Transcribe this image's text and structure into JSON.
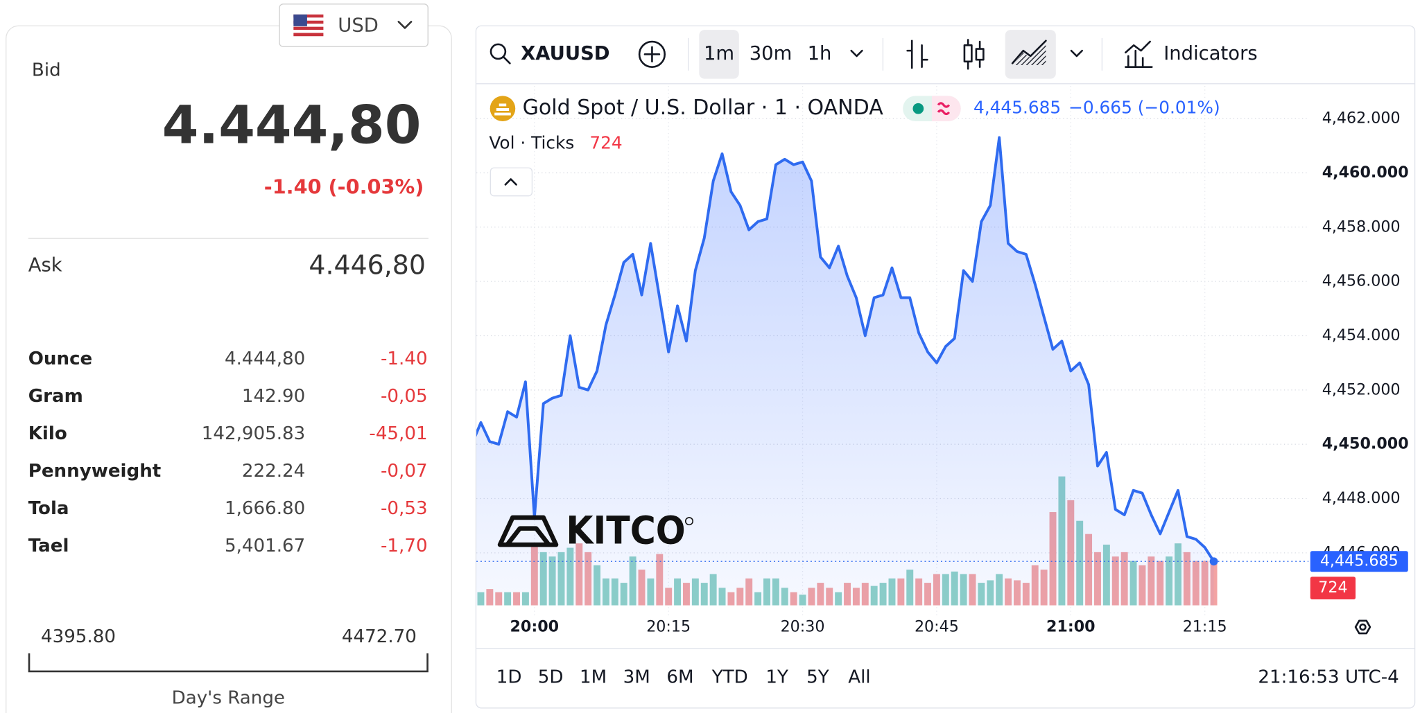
{
  "currency": {
    "code": "USD"
  },
  "quote": {
    "bid_label": "Bid",
    "bid": "4.444,80",
    "change": "-1.40 (-0.03%)",
    "ask_label": "Ask",
    "ask": "4.446,80"
  },
  "units": {
    "rows": [
      {
        "unit": "Ounce",
        "price": "4.444,80",
        "change": "-1.40"
      },
      {
        "unit": "Gram",
        "price": "142.90",
        "change": "-0,05"
      },
      {
        "unit": "Kilo",
        "price": "142,905.83",
        "change": "-45,01"
      },
      {
        "unit": "Pennyweight",
        "price": "222.24",
        "change": "-0,07"
      },
      {
        "unit": "Tola",
        "price": "1,666.80",
        "change": "-0,53"
      },
      {
        "unit": "Tael",
        "price": "5,401.67",
        "change": "-1,70"
      }
    ]
  },
  "day_range": {
    "low": "4395.80",
    "high": "4472.70",
    "label": "Day's Range"
  },
  "toolbar": {
    "symbol": "XAUUSD",
    "intervals": [
      "1m",
      "30m",
      "1h"
    ],
    "indicators": "Indicators"
  },
  "chart_data": {
    "type": "line",
    "title": "Gold Spot / U.S. Dollar · 1 · OANDA",
    "last_label": "4,445.685",
    "change_label": "−0.665 (−0.01%)",
    "watermark": "KITCO",
    "x": [
      "19:53",
      "19:54",
      "19:55",
      "19:56",
      "19:57",
      "19:58",
      "19:59",
      "20:00",
      "20:01",
      "20:02",
      "20:03",
      "20:04",
      "20:05",
      "20:06",
      "20:07",
      "20:08",
      "20:09",
      "20:10",
      "20:11",
      "20:12",
      "20:13",
      "20:14",
      "20:15",
      "20:16",
      "20:17",
      "20:18",
      "20:19",
      "20:20",
      "20:21",
      "20:22",
      "20:23",
      "20:24",
      "20:25",
      "20:26",
      "20:27",
      "20:28",
      "20:29",
      "20:30",
      "20:31",
      "20:32",
      "20:33",
      "20:34",
      "20:35",
      "20:36",
      "20:37",
      "20:38",
      "20:39",
      "20:40",
      "20:41",
      "20:42",
      "20:43",
      "20:44",
      "20:45",
      "20:46",
      "20:47",
      "20:48",
      "20:49",
      "20:50",
      "20:51",
      "20:52",
      "20:53",
      "20:54",
      "20:55",
      "20:56",
      "20:57",
      "20:58",
      "20:59",
      "21:00",
      "21:01",
      "21:02",
      "21:03",
      "21:04",
      "21:05",
      "21:06",
      "21:07",
      "21:08",
      "21:09",
      "21:10",
      "21:11",
      "21:12",
      "21:13",
      "21:14",
      "21:15",
      "21:16"
    ],
    "series": [
      {
        "color": "#2f6bf0",
        "values": [
          4450.0,
          4450.8,
          4450.1,
          4450.0,
          4451.2,
          4451.0,
          4452.3,
          4447.3,
          4451.5,
          4451.7,
          4451.8,
          4454.0,
          4452.1,
          4452.0,
          4452.7,
          4454.4,
          4455.5,
          4456.7,
          4457.0,
          4455.5,
          4457.4,
          4455.4,
          4453.4,
          4455.1,
          4453.8,
          4456.4,
          4457.6,
          4459.7,
          4460.7,
          4459.3,
          4458.8,
          4457.9,
          4458.2,
          4458.3,
          4460.3,
          4460.5,
          4460.3,
          4460.4,
          4459.7,
          4456.9,
          4456.5,
          4457.3,
          4456.2,
          4455.4,
          4454.0,
          4455.4,
          4455.5,
          4456.5,
          4455.4,
          4455.4,
          4454.1,
          4453.4,
          4453.0,
          4453.6,
          4453.9,
          4456.4,
          4456.0,
          4458.2,
          4458.8,
          4461.3,
          4457.4,
          4457.1,
          4457.0,
          4455.9,
          4454.7,
          4453.5,
          4453.8,
          4452.7,
          4453.0,
          4452.2,
          4449.2,
          4449.7,
          4447.6,
          4447.4,
          4448.3,
          4448.2,
          4447.4,
          4446.7,
          4447.5,
          4448.3,
          4446.6,
          4446.5,
          4446.2,
          4445.685
        ]
      },
      {
        "name": "Vol · Ticks",
        "axis": "y2",
        "colors": {
          "up": "#8fd1c6",
          "down": "#f3a3a3",
          "label": "#f23645"
        },
        "values": [
          260,
          210,
          260,
          210,
          210,
          210,
          210,
          970,
          850,
          780,
          850,
          920,
          990,
          850,
          640,
          430,
          430,
          360,
          780,
          570,
          430,
          820,
          280,
          430,
          360,
          430,
          360,
          500,
          280,
          210,
          280,
          430,
          210,
          430,
          430,
          280,
          210,
          170,
          280,
          360,
          280,
          210,
          360,
          280,
          360,
          310,
          360,
          430,
          430,
          570,
          430,
          360,
          500,
          500,
          540,
          500,
          500,
          360,
          400,
          500,
          430,
          400,
          360,
          640,
          570,
          1490,
          2060,
          1680,
          1350,
          1140,
          850,
          970,
          780,
          850,
          710,
          640,
          780,
          710,
          780,
          990,
          850,
          710,
          710,
          724
        ]
      }
    ],
    "xlim": [
      "19:53",
      "21:27"
    ],
    "xticks": [
      "20:00",
      "20:15",
      "20:30",
      "20:45",
      "21:00",
      "21:15"
    ],
    "ylim": [
      4443.7,
      4463.2
    ],
    "yticks": [
      {
        "value": 4446,
        "label": "4,446.000"
      },
      {
        "value": 4448,
        "label": "4,448.000"
      },
      {
        "value": 4450,
        "label": "4,450.000"
      },
      {
        "value": 4452,
        "label": "4,452.000"
      },
      {
        "value": 4454,
        "label": "4,454.000"
      },
      {
        "value": 4456,
        "label": "4,456.000"
      },
      {
        "value": 4458,
        "label": "4,458.000"
      },
      {
        "value": 4460,
        "label": "4,460.000"
      },
      {
        "value": 4462,
        "label": "4,462.000"
      }
    ],
    "y2lim": [
      0,
      8300
    ],
    "grid": true
  },
  "ranges": [
    "1D",
    "5D",
    "1M",
    "3M",
    "6M",
    "YTD",
    "1Y",
    "5Y",
    "All"
  ],
  "clock": "21:16:53 UTC-4"
}
